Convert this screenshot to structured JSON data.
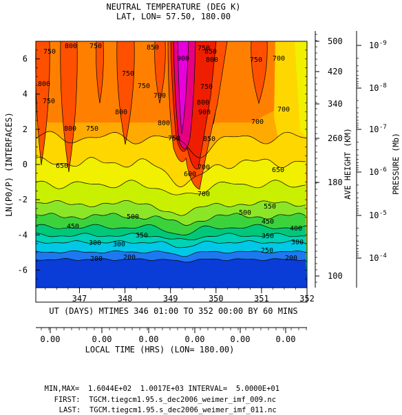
{
  "chart_data": {
    "type": "contour",
    "title": "NEUTRAL TEMPERATURE (DEG K)",
    "subtitle": "LAT, LON=  57.50,     180.00",
    "xlabel": "UT (DAYS) MTIMES 346 01:00 TO 352 00:00 BY    60 MINS",
    "ylabel": "LN(P0/P) (INTERFACES)",
    "xlim": [
      346.04,
      352.0
    ],
    "ylim": [
      -7,
      7
    ],
    "x_ticks": [
      "347",
      "348",
      "349",
      "350",
      "351",
      "352"
    ],
    "y_ticks": [
      "6",
      "4",
      "2",
      "0",
      "-2",
      "-4",
      "-6"
    ],
    "secondary_x": {
      "label": "LOCAL TIME (HRS) (LON= 180.00)",
      "ticks": [
        "0.00",
        "0.00",
        "0.00",
        "0.00",
        "0.00",
        "0.00"
      ]
    },
    "height_axis": {
      "label": "AVE HEIGHT (KM)",
      "ticks": [
        "500",
        "420",
        "340",
        "260",
        "180",
        "100"
      ]
    },
    "pressure_axis": {
      "label": "PRESSURE (Mb)",
      "ticks": [
        "10",
        "10",
        "10",
        "10",
        "10",
        "10"
      ],
      "exponents": [
        "-9",
        "-8",
        "-7",
        "-6",
        "-5",
        "-4"
      ]
    },
    "contour_levels": [
      200,
      250,
      300,
      350,
      400,
      450,
      500,
      550,
      600,
      650,
      700,
      750,
      800,
      850,
      900,
      950,
      1000
    ],
    "min": 160.44,
    "max": 1001.7,
    "interval": 50,
    "contour_labels": [
      "750",
      "800",
      "750",
      "800",
      "750",
      "800",
      "750",
      "750",
      "800",
      "850",
      "750",
      "700",
      "800",
      "750",
      "750",
      "800",
      "750",
      "900",
      "850",
      "900",
      "800",
      "850",
      "700",
      "750",
      "700",
      "700",
      "700",
      "650",
      "650",
      "600",
      "700",
      "550",
      "500",
      "500",
      "450",
      "450",
      "400",
      "350",
      "350",
      "300",
      "300",
      "300",
      "250",
      "200",
      "200",
      "200"
    ],
    "colors": {
      "c200": "#0a3cd8",
      "c250": "#1e78f0",
      "c300": "#00c8e6",
      "c350": "#00d2b4",
      "c400": "#00c878",
      "c450": "#3cd23c",
      "c500": "#8ce628",
      "c550": "#c8f000",
      "c600": "#f0f000",
      "c650": "#ffd700",
      "c700": "#ffaa00",
      "c750": "#ff8000",
      "c800": "#ff5000",
      "c850": "#f01e00",
      "c900": "#e60082",
      "c950": "#e600dc"
    }
  },
  "footer": {
    "minmax_label": "MIN,MAX=",
    "minmax_value": "1.6044E+02  1.0017E+03",
    "interval_label": "INTERVAL=",
    "interval_value": "5.0000E+01",
    "first_label": "FIRST:",
    "first_value": "TGCM.tiegcm1.95.s_dec2006_weimer_imf_009.nc",
    "last_label": "LAST:",
    "last_value": "TGCM.tiegcm1.95.s_dec2006_weimer_imf_011.nc"
  }
}
